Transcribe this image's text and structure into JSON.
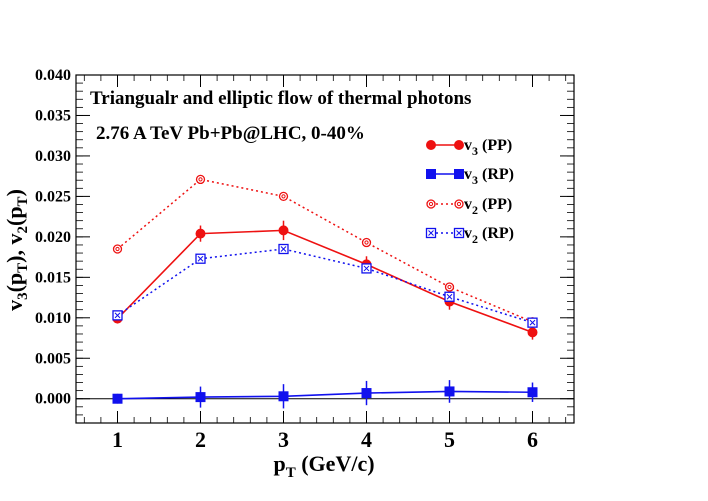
{
  "chart_data": {
    "type": "line",
    "title": "Triangualr and elliptic flow of thermal photons",
    "subtitle": "2.76 A TeV Pb+Pb@LHC, 0-40%",
    "xlabel": {
      "main": "p",
      "sub": "T",
      "rest": " (GeV/c)"
    },
    "ylabel": {
      "p1": "v",
      "s1": "3",
      "p2": "(p",
      "s2": "T",
      "p3": "), v",
      "s3": "2",
      "p4": "(p",
      "s4": "T",
      "p5": ")"
    },
    "xlim": [
      0.5,
      6.5
    ],
    "ylim": [
      -0.003,
      0.04
    ],
    "x_ticks": [
      1,
      2,
      3,
      4,
      5,
      6
    ],
    "x_tick_labels": [
      "1",
      "2",
      "3",
      "4",
      "5",
      "6"
    ],
    "y_ticks": [
      0.0,
      0.005,
      0.01,
      0.015,
      0.02,
      0.025,
      0.03,
      0.035,
      0.04
    ],
    "y_tick_labels": [
      "0.000",
      "0.005",
      "0.010",
      "0.015",
      "0.020",
      "0.025",
      "0.030",
      "0.035",
      "0.040"
    ],
    "series": [
      {
        "name": "v3 (PP)",
        "label_main": "v",
        "label_sub": "3",
        "label_rest": " (PP)",
        "color": "#ee1111",
        "marker": "circle-filled",
        "line": "solid",
        "x": [
          1,
          2,
          3,
          4,
          5,
          6
        ],
        "values": [
          0.0099,
          0.0204,
          0.0208,
          0.0166,
          0.012,
          0.0082
        ],
        "errors": [
          0.0003,
          0.001,
          0.0012,
          0.001,
          0.001,
          0.0009
        ]
      },
      {
        "name": "v3 (RP)",
        "label_main": "v",
        "label_sub": "3",
        "label_rest": " (RP)",
        "color": "#1111ee",
        "marker": "square-filled",
        "line": "solid",
        "x": [
          1,
          2,
          3,
          4,
          5,
          6
        ],
        "values": [
          0.0,
          0.0002,
          0.0003,
          0.0007,
          0.0009,
          0.0008
        ],
        "errors": [
          0.0006,
          0.0013,
          0.0015,
          0.0015,
          0.0014,
          0.0012
        ]
      },
      {
        "name": "v2 (PP)",
        "label_main": "v",
        "label_sub": "2",
        "label_rest": " (PP)",
        "color": "#ee1111",
        "marker": "circle-open",
        "line": "dotted",
        "x": [
          1,
          2,
          3,
          4,
          5,
          6
        ],
        "values": [
          0.0185,
          0.0271,
          0.025,
          0.0193,
          0.0138,
          0.0095
        ],
        "errors": []
      },
      {
        "name": "v2 (RP)",
        "label_main": "v",
        "label_sub": "2",
        "label_rest": " (RP)",
        "color": "#1111ee",
        "marker": "square-open",
        "line": "dotted",
        "x": [
          1,
          2,
          3,
          4,
          5,
          6
        ],
        "values": [
          0.0103,
          0.0173,
          0.0185,
          0.0161,
          0.0126,
          0.0094
        ],
        "errors": []
      }
    ],
    "legend_position": "top-right",
    "zero_line": true,
    "grid": false
  }
}
